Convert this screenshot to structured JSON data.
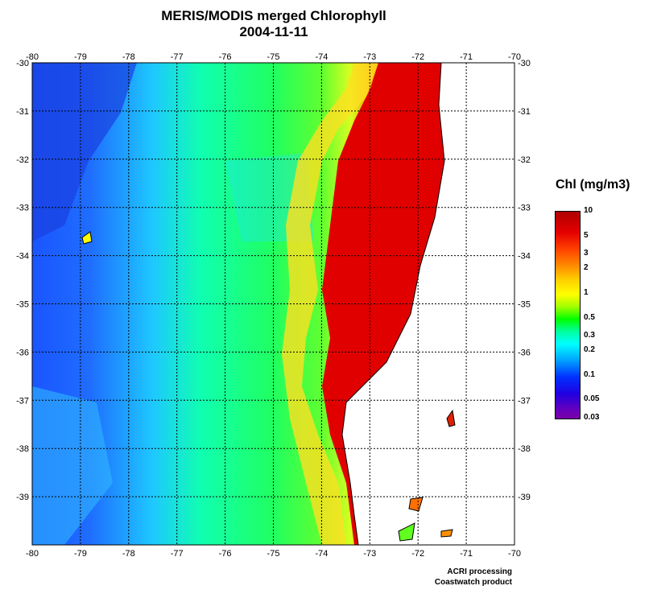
{
  "title": {
    "line1": "MERIS/MODIS merged Chlorophyll",
    "line2": "2004-11-11"
  },
  "map": {
    "lon_range": [
      -80,
      -70
    ],
    "lat_range": [
      -30,
      -40
    ],
    "lon_ticks": [
      "-80",
      "-79",
      "-78",
      "-77",
      "-76",
      "-75",
      "-74",
      "-73",
      "-72",
      "-71",
      "-70"
    ],
    "lat_ticks": [
      "-30",
      "-31",
      "-32",
      "-33",
      "-34",
      "-35",
      "-36",
      "-37",
      "-38",
      "-39"
    ],
    "grid": "dotted"
  },
  "legend": {
    "title": "Chl (mg/m3)",
    "labels": [
      {
        "text": "10",
        "value": 10
      },
      {
        "text": "5",
        "value": 5
      },
      {
        "text": "3",
        "value": 3
      },
      {
        "text": "2",
        "value": 2
      },
      {
        "text": "1",
        "value": 1
      },
      {
        "text": "0.5",
        "value": 0.5
      },
      {
        "text": "0.3",
        "value": 0.3
      },
      {
        "text": "0.2",
        "value": 0.2
      },
      {
        "text": "0.1",
        "value": 0.1
      },
      {
        "text": "0.05",
        "value": 0.05
      },
      {
        "text": "0.03",
        "value": 0.03
      }
    ]
  },
  "credits": {
    "line1": "ACRI processing",
    "line2": "Coastwatch product"
  }
}
